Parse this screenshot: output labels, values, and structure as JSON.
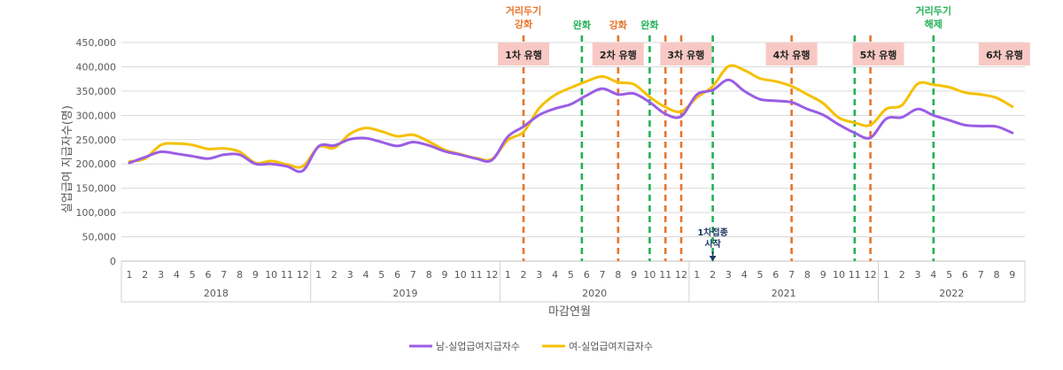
{
  "chart_data": {
    "type": "line",
    "title": "",
    "xlabel": "마감연월",
    "ylabel": "실업급여 지급자수(명)",
    "ylim": [
      0,
      450000
    ],
    "yticks": [
      0,
      50000,
      100000,
      150000,
      200000,
      250000,
      300000,
      350000,
      400000,
      450000
    ],
    "ytick_labels": [
      "0",
      "50,000",
      "100,000",
      "150,000",
      "200,000",
      "250,000",
      "300,000",
      "350,000",
      "400,000",
      "450,000"
    ],
    "grid": true,
    "legend_position": "bottom",
    "years": [
      {
        "label": "2018",
        "months": [
          "1",
          "2",
          "3",
          "4",
          "5",
          "6",
          "7",
          "8",
          "9",
          "10",
          "11",
          "12"
        ]
      },
      {
        "label": "2019",
        "months": [
          "1",
          "2",
          "3",
          "4",
          "5",
          "6",
          "7",
          "8",
          "9",
          "10",
          "11",
          "12"
        ]
      },
      {
        "label": "2020",
        "months": [
          "1",
          "2",
          "3",
          "4",
          "5",
          "6",
          "7",
          "8",
          "9",
          "10",
          "11",
          "12"
        ]
      },
      {
        "label": "2021",
        "months": [
          "1",
          "2",
          "3",
          "4",
          "5",
          "6",
          "7",
          "8",
          "9",
          "10",
          "11",
          "12"
        ]
      },
      {
        "label": "2022",
        "months": [
          "1",
          "2",
          "3",
          "4",
          "5",
          "6",
          "7",
          "8",
          "9"
        ]
      }
    ],
    "series": [
      {
        "name": "남-실업급여지급자수",
        "color": "#9b5de5",
        "values": [
          202000,
          214000,
          225000,
          221000,
          216000,
          211000,
          219000,
          219000,
          200000,
          200000,
          195000,
          186000,
          236000,
          238000,
          251000,
          253000,
          245000,
          237000,
          245000,
          238000,
          226000,
          219000,
          211000,
          208000,
          256000,
          277000,
          301000,
          314000,
          323000,
          341000,
          355000,
          343000,
          345000,
          327000,
          303000,
          298000,
          343000,
          352000,
          373000,
          350000,
          333000,
          330000,
          327000,
          313000,
          301000,
          281000,
          264000,
          254000,
          293000,
          296000,
          313000,
          300000,
          290000,
          280000,
          278000,
          277000,
          264000
        ]
      },
      {
        "name": "여-실업급여지급자수",
        "color": "#f5c000",
        "values": [
          205000,
          211000,
          239000,
          242000,
          239000,
          231000,
          232000,
          225000,
          202000,
          206000,
          199000,
          195000,
          235000,
          233000,
          262000,
          274000,
          267000,
          257000,
          260000,
          246000,
          229000,
          220000,
          212000,
          210000,
          249000,
          266000,
          315000,
          342000,
          357000,
          370000,
          380000,
          368000,
          364000,
          338000,
          317000,
          308000,
          337000,
          360000,
          401000,
          393000,
          376000,
          370000,
          360000,
          343000,
          325000,
          295000,
          285000,
          280000,
          313000,
          321000,
          365000,
          363000,
          358000,
          347000,
          343000,
          336000,
          318000
        ]
      }
    ],
    "event_lines": [
      {
        "index": 25.0,
        "style": "orange"
      },
      {
        "index": 28.7,
        "style": "green"
      },
      {
        "index": 31.0,
        "style": "orange"
      },
      {
        "index": 33.0,
        "style": "green"
      },
      {
        "index": 34.0,
        "style": "orange"
      },
      {
        "index": 35.0,
        "style": "orange"
      },
      {
        "index": 37.0,
        "style": "green"
      },
      {
        "index": 42.0,
        "style": "orange"
      },
      {
        "index": 46.0,
        "style": "green"
      },
      {
        "index": 47.0,
        "style": "orange"
      },
      {
        "index": 51.0,
        "style": "green"
      }
    ],
    "top_annotations": [
      {
        "index": 25.0,
        "text_lines": [
          "거리두기",
          "강화"
        ],
        "color": "#e8742a"
      },
      {
        "index": 28.7,
        "text_lines": [
          "완화"
        ],
        "color": "#22b255"
      },
      {
        "index": 31.0,
        "text_lines": [
          "강화"
        ],
        "color": "#e8742a"
      },
      {
        "index": 33.0,
        "text_lines": [
          "완화"
        ],
        "color": "#22b255"
      },
      {
        "index": 51.0,
        "text_lines": [
          "거리두기",
          "해제"
        ],
        "color": "#22b255"
      }
    ],
    "wave_labels": [
      {
        "index": 25.0,
        "text": "1차 유행"
      },
      {
        "index": 31.0,
        "text": "2차 유행"
      },
      {
        "index": 35.3,
        "text": "3차 유행"
      },
      {
        "index": 42.0,
        "text": "4차 유행"
      },
      {
        "index": 47.5,
        "text": "5차 유행"
      },
      {
        "index": 55.5,
        "text": "6차 유행"
      }
    ],
    "vaccine_annotation": {
      "index": 37.0,
      "text_lines": [
        "1차접종",
        "시작"
      ]
    }
  },
  "colors": {
    "male": "#9b5de5",
    "female": "#f5c000",
    "orange_line": "#e8742a",
    "green_line": "#22b255",
    "wave_box": "#f8c9c4",
    "grid": "#d9d9d9",
    "axis_text": "#595959",
    "vaccine_text": "#1f3864"
  }
}
